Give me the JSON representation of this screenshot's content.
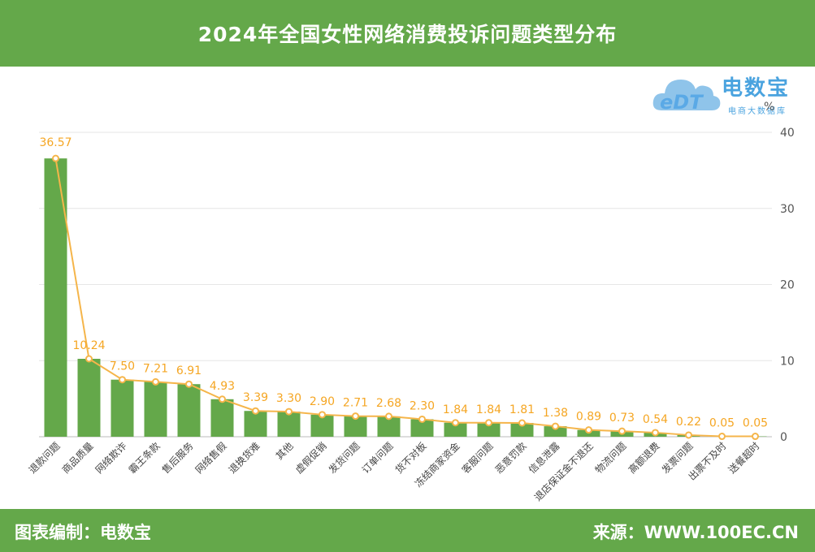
{
  "header": {
    "title": "2024年全国女性网络消费投诉问题类型分布"
  },
  "logo": {
    "name": "电数宝",
    "subtitle": "电商大数据库",
    "mark": "eDT"
  },
  "unit": "%",
  "footer": {
    "left": "图表编制：电数宝",
    "right": "来源：WWW.100EC.CN"
  },
  "colors": {
    "bar": "#64a84a",
    "line": "#f5b54a",
    "label": "#f5a623",
    "grid": "#e6e6e6",
    "header": "#64a84a"
  },
  "chart_data": {
    "type": "bar",
    "categories": [
      "退款问题",
      "商品质量",
      "网络欺诈",
      "霸王条款",
      "售后服务",
      "网络售假",
      "退换货难",
      "其他",
      "虚假促销",
      "发货问题",
      "订单问题",
      "货不对板",
      "冻结商家资金",
      "客服问题",
      "恶意罚款",
      "信息泄露",
      "退店保证金不退还",
      "物流问题",
      "高额退费",
      "发票问题",
      "出票不及时",
      "送餐超时"
    ],
    "series": [
      {
        "type": "bar",
        "values": [
          36.57,
          10.24,
          7.5,
          7.21,
          6.91,
          4.93,
          3.39,
          3.3,
          2.9,
          2.71,
          2.68,
          2.3,
          1.84,
          1.84,
          1.81,
          1.38,
          0.89,
          0.73,
          0.54,
          0.22,
          0.05,
          0.05
        ]
      },
      {
        "type": "line",
        "values": [
          36.57,
          10.24,
          7.5,
          7.21,
          6.91,
          4.93,
          3.39,
          3.3,
          2.9,
          2.71,
          2.68,
          2.3,
          1.84,
          1.84,
          1.81,
          1.38,
          0.89,
          0.73,
          0.54,
          0.22,
          0.05,
          0.05
        ]
      }
    ],
    "data_labels": [
      "36.57",
      "10.24",
      "7.50",
      "7.21",
      "6.91",
      "4.93",
      "3.39",
      "3.30",
      "2.90",
      "2.71",
      "2.68",
      "2.30",
      "1.84",
      "1.84",
      "1.81",
      "1.38",
      "0.89",
      "0.73",
      "0.54",
      "0.22",
      "0.05",
      "0.05"
    ],
    "ylim": [
      0,
      40
    ],
    "yticks": [
      "0",
      "10",
      "20",
      "30",
      "40"
    ],
    "y_axis_side": "right",
    "grid": true
  }
}
